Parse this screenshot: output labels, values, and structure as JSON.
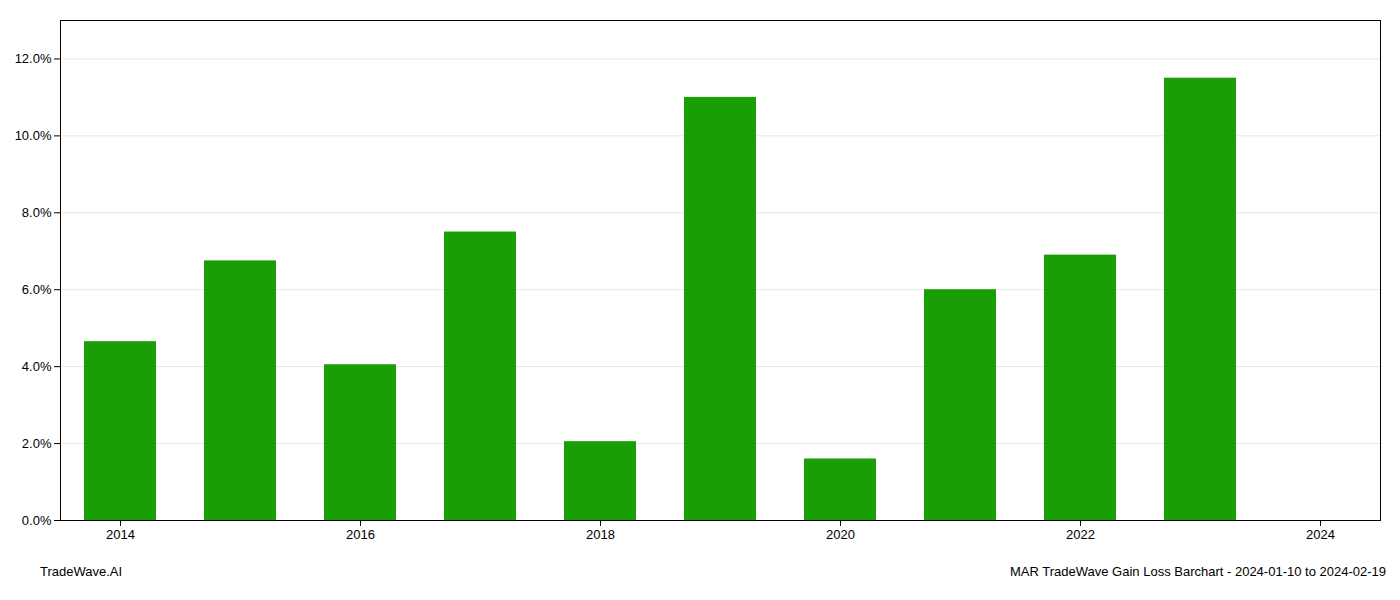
{
  "chart_data": {
    "type": "bar",
    "x": [
      2014,
      2015,
      2016,
      2017,
      2018,
      2019,
      2020,
      2021,
      2022,
      2023
    ],
    "values": [
      0.0465,
      0.0675,
      0.0405,
      0.075,
      0.0205,
      0.11,
      0.016,
      0.06,
      0.069,
      0.115
    ],
    "color": "#1a9e06",
    "xlim": [
      2013.5,
      2024.5
    ],
    "xticks": [
      2014,
      2016,
      2018,
      2020,
      2022,
      2024
    ],
    "ylim": [
      0,
      0.13
    ],
    "yticks": [
      {
        "value": 0,
        "label": "0.0%"
      },
      {
        "value": 0.02,
        "label": "2.0%"
      },
      {
        "value": 0.04,
        "label": "4.0%"
      },
      {
        "value": 0.06,
        "label": "6.0%"
      },
      {
        "value": 0.08,
        "label": "8.0%"
      },
      {
        "value": 0.1,
        "label": "10.0%"
      },
      {
        "value": 0.12,
        "label": "12.0%"
      }
    ],
    "grid": true,
    "annotations": [
      "TradeWave.AI",
      "MAR TradeWave Gain Loss Barchart - 2024-01-10 to 2024-02-19"
    ]
  }
}
